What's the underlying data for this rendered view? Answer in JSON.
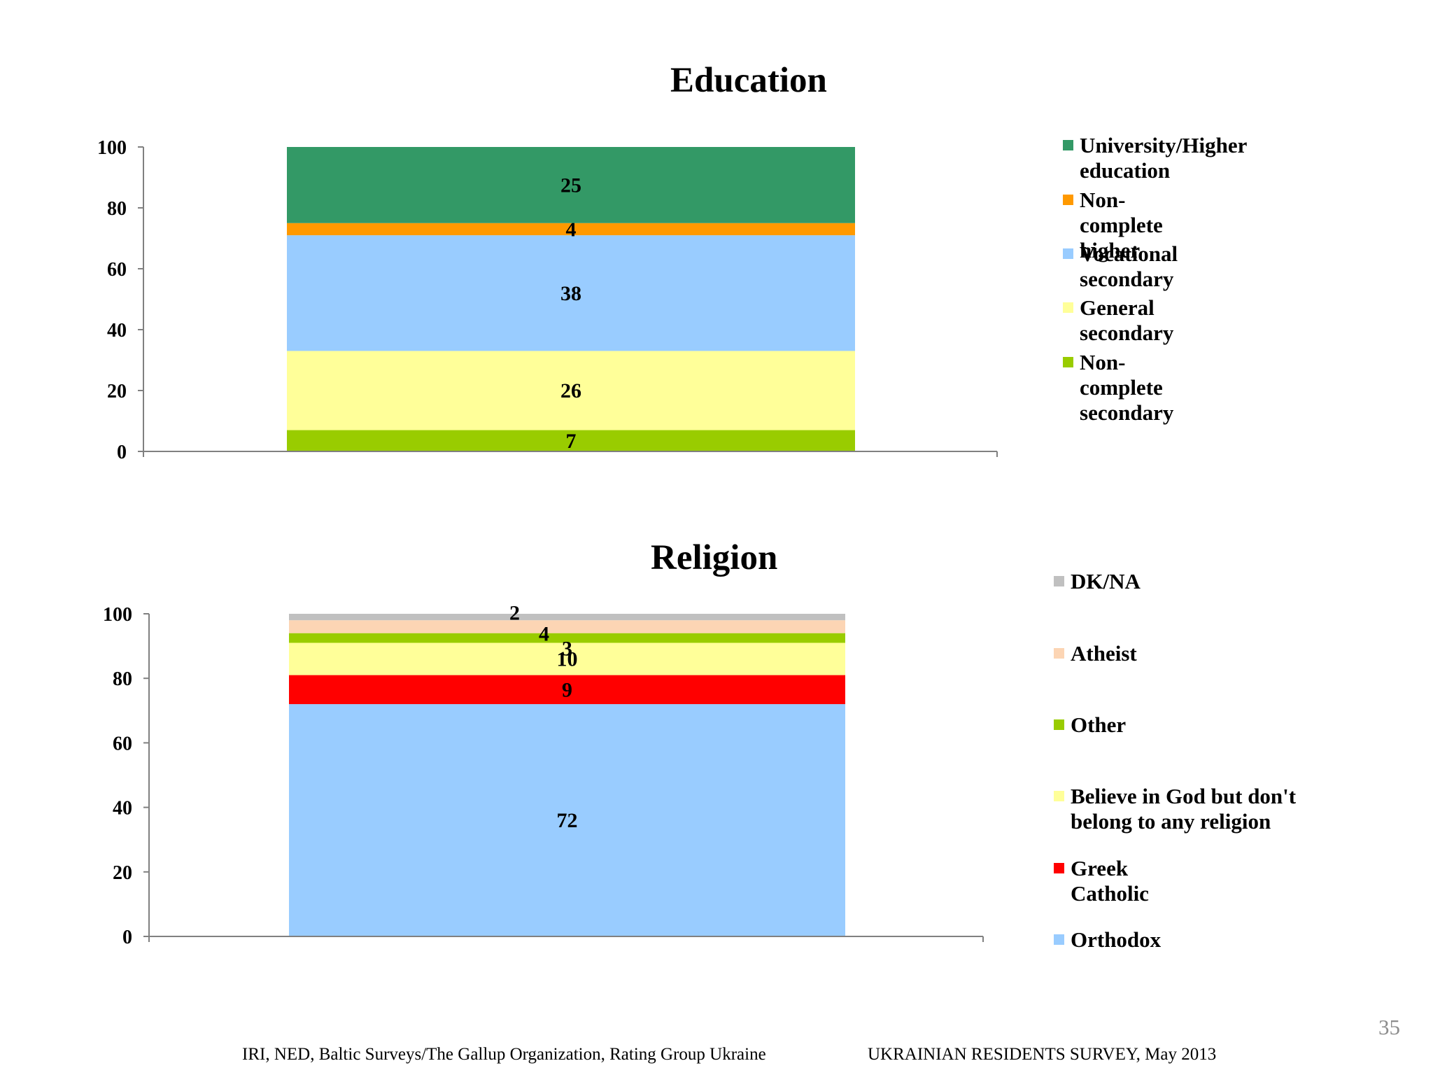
{
  "chart_data": [
    {
      "type": "bar",
      "stacked": true,
      "title": "Education",
      "xlabel": "",
      "ylabel": "",
      "ylim": [
        0,
        100
      ],
      "yticks": [
        0,
        20,
        40,
        60,
        80,
        100
      ],
      "grid": false,
      "legend_position": "right",
      "series": [
        {
          "name": "Non-complete secondary",
          "value": 7,
          "color": "#99cc00"
        },
        {
          "name": "General secondary",
          "value": 26,
          "color": "#ffff99"
        },
        {
          "name": "Vocational secondary",
          "value": 38,
          "color": "#99ccff"
        },
        {
          "name": "Non-complete higher",
          "value": 4,
          "color": "#ff9900"
        },
        {
          "name": "University/Higher education",
          "value": 25,
          "color": "#339966"
        }
      ],
      "legend_order": [
        "University/Higher education",
        "Non-complete higher",
        "Vocational secondary",
        "General secondary",
        "Non-complete secondary"
      ]
    },
    {
      "type": "bar",
      "stacked": true,
      "title": "Religion",
      "xlabel": "",
      "ylabel": "",
      "ylim": [
        0,
        100
      ],
      "yticks": [
        0,
        20,
        40,
        60,
        80,
        100
      ],
      "grid": false,
      "legend_position": "right",
      "series": [
        {
          "name": "Orthodox",
          "value": 72,
          "color": "#99ccff"
        },
        {
          "name": "Greek Catholic",
          "value": 9,
          "color": "#ff0000"
        },
        {
          "name": "Believe in God but don't belong to any religion",
          "value": 10,
          "color": "#ffff99"
        },
        {
          "name": "Other",
          "value": 3,
          "color": "#99cc00"
        },
        {
          "name": "Atheist",
          "value": 4,
          "color": "#fcd5b4"
        },
        {
          "name": "DK/NA",
          "value": 2,
          "color": "#c0c0c0"
        }
      ],
      "legend_order": [
        "DK/NA",
        "Atheist",
        "Other",
        "Believe in God but don't belong to any religion",
        "Greek Catholic",
        "Orthodox"
      ]
    }
  ],
  "footer": {
    "source": "IRI, NED,  Baltic Surveys/The Gallup Organization, Rating Group Ukraine",
    "survey": "UKRAINIAN RESIDENTS SURVEY, May  2013",
    "page_number": "35"
  }
}
